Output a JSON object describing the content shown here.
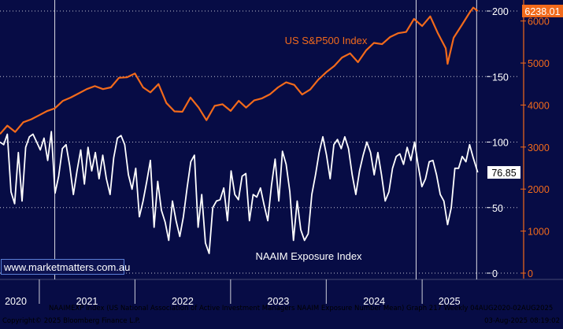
{
  "colors": {
    "plot_bg": "#070c45",
    "grid": "#ffffff",
    "sp500": "#f26a1b",
    "naaim": "#ffffff",
    "right_axis_text": "#f26a1b",
    "left_axis_text": "#ffffff",
    "time_bar_bg": "#070c45"
  },
  "watermark": "www.marketmatters.com.au",
  "footer": {
    "description": "NAAIMEXP Index (US National Association of Active Investment Managers NAAIM Exposure Number Mean) Graph 217  Weekly 04AUG2020-02AUG2025",
    "copyright": "Copyright© 2025 Bloomberg Finance L.P.",
    "timestamp": "03-Aug-2025 08:19:02"
  },
  "chart_data": {
    "type": "line",
    "x_axis": {
      "type": "date",
      "range": [
        "2020-08-04",
        "2025-08-02"
      ],
      "tick_labels": [
        "2020",
        "2021",
        "2022",
        "2023",
        "2024",
        "2025"
      ],
      "tick_dates": [
        "2020-10-01",
        "2021-07-02",
        "2022-07-02",
        "2023-07-02",
        "2024-07-02",
        "2025-04-15"
      ],
      "dividers": [
        "2021-01-01",
        "2022-01-01",
        "2023-01-01",
        "2024-01-01",
        "2025-01-01"
      ]
    },
    "y_axis_naaim": {
      "range": [
        0,
        200
      ],
      "ticks": [
        0,
        50,
        100,
        150,
        200
      ],
      "grid": true
    },
    "y_axis_sp500": {
      "range": [
        0,
        6500
      ],
      "ticks": [
        0,
        1000,
        2000,
        3000,
        4000,
        5000,
        6000
      ],
      "position": "right"
    },
    "vertical_markers": [
      "2021-03-01",
      "2024-12-09",
      "2025-07-28"
    ],
    "series": [
      {
        "name": "US S&P500 Index",
        "axis": "right",
        "last_value_label": "6238.01",
        "values": [
          [
            "2020-08-04",
            3310
          ],
          [
            "2020-09-01",
            3510
          ],
          [
            "2020-10-01",
            3360
          ],
          [
            "2020-11-01",
            3590
          ],
          [
            "2020-12-01",
            3660
          ],
          [
            "2021-01-01",
            3760
          ],
          [
            "2021-02-01",
            3860
          ],
          [
            "2021-03-01",
            3920
          ],
          [
            "2021-04-01",
            4100
          ],
          [
            "2021-05-01",
            4180
          ],
          [
            "2021-06-01",
            4280
          ],
          [
            "2021-07-01",
            4380
          ],
          [
            "2021-08-01",
            4450
          ],
          [
            "2021-09-01",
            4380
          ],
          [
            "2021-10-01",
            4420
          ],
          [
            "2021-11-01",
            4650
          ],
          [
            "2021-12-01",
            4660
          ],
          [
            "2022-01-01",
            4750
          ],
          [
            "2022-02-01",
            4420
          ],
          [
            "2022-03-01",
            4300
          ],
          [
            "2022-04-01",
            4500
          ],
          [
            "2022-05-01",
            4050
          ],
          [
            "2022-06-01",
            3850
          ],
          [
            "2022-07-01",
            3840
          ],
          [
            "2022-08-01",
            4180
          ],
          [
            "2022-09-01",
            3940
          ],
          [
            "2022-10-01",
            3640
          ],
          [
            "2022-11-01",
            3980
          ],
          [
            "2022-12-01",
            4020
          ],
          [
            "2023-01-01",
            3860
          ],
          [
            "2023-02-01",
            4100
          ],
          [
            "2023-03-01",
            3940
          ],
          [
            "2023-04-01",
            4110
          ],
          [
            "2023-05-01",
            4160
          ],
          [
            "2023-06-01",
            4260
          ],
          [
            "2023-07-01",
            4420
          ],
          [
            "2023-08-01",
            4540
          ],
          [
            "2023-09-01",
            4480
          ],
          [
            "2023-10-01",
            4250
          ],
          [
            "2023-11-01",
            4370
          ],
          [
            "2023-12-01",
            4600
          ],
          [
            "2024-01-01",
            4780
          ],
          [
            "2024-02-01",
            4930
          ],
          [
            "2024-03-01",
            5130
          ],
          [
            "2024-04-01",
            5230
          ],
          [
            "2024-05-01",
            5020
          ],
          [
            "2024-06-01",
            5300
          ],
          [
            "2024-07-01",
            5480
          ],
          [
            "2024-08-01",
            5450
          ],
          [
            "2024-09-01",
            5620
          ],
          [
            "2024-10-01",
            5710
          ],
          [
            "2024-11-01",
            5740
          ],
          [
            "2024-12-01",
            6050
          ],
          [
            "2025-01-01",
            5880
          ],
          [
            "2025-02-01",
            6110
          ],
          [
            "2025-03-01",
            5720
          ],
          [
            "2025-04-01",
            5350
          ],
          [
            "2025-04-08",
            4980
          ],
          [
            "2025-05-01",
            5600
          ],
          [
            "2025-06-01",
            5900
          ],
          [
            "2025-07-01",
            6200
          ],
          [
            "2025-07-15",
            6320
          ],
          [
            "2025-08-01",
            6238
          ]
        ]
      },
      {
        "name": "NAAIM Exposure Index",
        "axis": "left",
        "last_value_label": "76.85",
        "values": [
          [
            "2020-08-04",
            100
          ],
          [
            "2020-08-18",
            98
          ],
          [
            "2020-09-01",
            106
          ],
          [
            "2020-09-15",
            62
          ],
          [
            "2020-09-29",
            53
          ],
          [
            "2020-10-13",
            92
          ],
          [
            "2020-10-27",
            55
          ],
          [
            "2020-11-10",
            96
          ],
          [
            "2020-11-24",
            104
          ],
          [
            "2020-12-08",
            106
          ],
          [
            "2020-12-22",
            100
          ],
          [
            "2021-01-05",
            94
          ],
          [
            "2021-01-19",
            103
          ],
          [
            "2021-02-02",
            86
          ],
          [
            "2021-02-16",
            108
          ],
          [
            "2021-03-02",
            61
          ],
          [
            "2021-03-16",
            74
          ],
          [
            "2021-03-30",
            95
          ],
          [
            "2021-04-13",
            98
          ],
          [
            "2021-04-27",
            82
          ],
          [
            "2021-05-11",
            60
          ],
          [
            "2021-05-25",
            78
          ],
          [
            "2021-06-08",
            94
          ],
          [
            "2021-06-22",
            68
          ],
          [
            "2021-07-06",
            96
          ],
          [
            "2021-07-20",
            78
          ],
          [
            "2021-08-03",
            92
          ],
          [
            "2021-08-17",
            72
          ],
          [
            "2021-08-31",
            90
          ],
          [
            "2021-09-14",
            72
          ],
          [
            "2021-09-28",
            60
          ],
          [
            "2021-10-12",
            88
          ],
          [
            "2021-10-26",
            103
          ],
          [
            "2021-11-09",
            105
          ],
          [
            "2021-11-23",
            98
          ],
          [
            "2021-12-07",
            75
          ],
          [
            "2021-12-21",
            64
          ],
          [
            "2022-01-04",
            80
          ],
          [
            "2022-01-18",
            43
          ],
          [
            "2022-02-01",
            55
          ],
          [
            "2022-02-15",
            70
          ],
          [
            "2022-03-01",
            86
          ],
          [
            "2022-03-15",
            35
          ],
          [
            "2022-03-29",
            70
          ],
          [
            "2022-04-12",
            48
          ],
          [
            "2022-04-26",
            39
          ],
          [
            "2022-05-10",
            25
          ],
          [
            "2022-05-24",
            55
          ],
          [
            "2022-06-07",
            40
          ],
          [
            "2022-06-21",
            28
          ],
          [
            "2022-07-05",
            43
          ],
          [
            "2022-07-19",
            65
          ],
          [
            "2022-08-02",
            85
          ],
          [
            "2022-08-16",
            90
          ],
          [
            "2022-08-30",
            35
          ],
          [
            "2022-09-13",
            60
          ],
          [
            "2022-09-27",
            23
          ],
          [
            "2022-10-11",
            15
          ],
          [
            "2022-10-25",
            50
          ],
          [
            "2022-11-08",
            55
          ],
          [
            "2022-11-22",
            56
          ],
          [
            "2022-12-06",
            65
          ],
          [
            "2022-12-20",
            40
          ],
          [
            "2023-01-03",
            78
          ],
          [
            "2023-01-17",
            60
          ],
          [
            "2023-01-31",
            56
          ],
          [
            "2023-02-14",
            74
          ],
          [
            "2023-02-28",
            76
          ],
          [
            "2023-03-14",
            40
          ],
          [
            "2023-03-28",
            60
          ],
          [
            "2023-04-11",
            58
          ],
          [
            "2023-04-25",
            65
          ],
          [
            "2023-05-09",
            52
          ],
          [
            "2023-05-23",
            40
          ],
          [
            "2023-06-06",
            67
          ],
          [
            "2023-06-20",
            87
          ],
          [
            "2023-07-04",
            55
          ],
          [
            "2023-07-18",
            93
          ],
          [
            "2023-08-01",
            83
          ],
          [
            "2023-08-15",
            62
          ],
          [
            "2023-08-29",
            25
          ],
          [
            "2023-09-12",
            55
          ],
          [
            "2023-09-26",
            33
          ],
          [
            "2023-10-10",
            25
          ],
          [
            "2023-10-24",
            30
          ],
          [
            "2023-11-07",
            60
          ],
          [
            "2023-11-21",
            75
          ],
          [
            "2023-12-05",
            92
          ],
          [
            "2023-12-19",
            104
          ],
          [
            "2024-01-02",
            90
          ],
          [
            "2024-01-16",
            72
          ],
          [
            "2024-01-30",
            98
          ],
          [
            "2024-02-13",
            102
          ],
          [
            "2024-02-27",
            95
          ],
          [
            "2024-03-12",
            104
          ],
          [
            "2024-03-26",
            95
          ],
          [
            "2024-04-09",
            75
          ],
          [
            "2024-04-23",
            60
          ],
          [
            "2024-05-07",
            78
          ],
          [
            "2024-05-21",
            90
          ],
          [
            "2024-06-04",
            100
          ],
          [
            "2024-06-18",
            92
          ],
          [
            "2024-07-02",
            75
          ],
          [
            "2024-07-16",
            92
          ],
          [
            "2024-07-30",
            75
          ],
          [
            "2024-08-13",
            55
          ],
          [
            "2024-08-27",
            62
          ],
          [
            "2024-09-10",
            80
          ],
          [
            "2024-09-24",
            89
          ],
          [
            "2024-10-08",
            91
          ],
          [
            "2024-10-22",
            83
          ],
          [
            "2024-11-05",
            96
          ],
          [
            "2024-11-19",
            86
          ],
          [
            "2024-12-03",
            100
          ],
          [
            "2024-12-17",
            82
          ],
          [
            "2024-12-31",
            66
          ],
          [
            "2025-01-14",
            72
          ],
          [
            "2025-01-28",
            85
          ],
          [
            "2025-02-11",
            86
          ],
          [
            "2025-02-25",
            75
          ],
          [
            "2025-03-11",
            60
          ],
          [
            "2025-03-25",
            55
          ],
          [
            "2025-04-08",
            37
          ],
          [
            "2025-04-22",
            50
          ],
          [
            "2025-05-06",
            80
          ],
          [
            "2025-05-20",
            80
          ],
          [
            "2025-06-03",
            89
          ],
          [
            "2025-06-17",
            85
          ],
          [
            "2025-07-01",
            98
          ],
          [
            "2025-07-15",
            88
          ],
          [
            "2025-08-01",
            76.85
          ]
        ]
      }
    ]
  }
}
